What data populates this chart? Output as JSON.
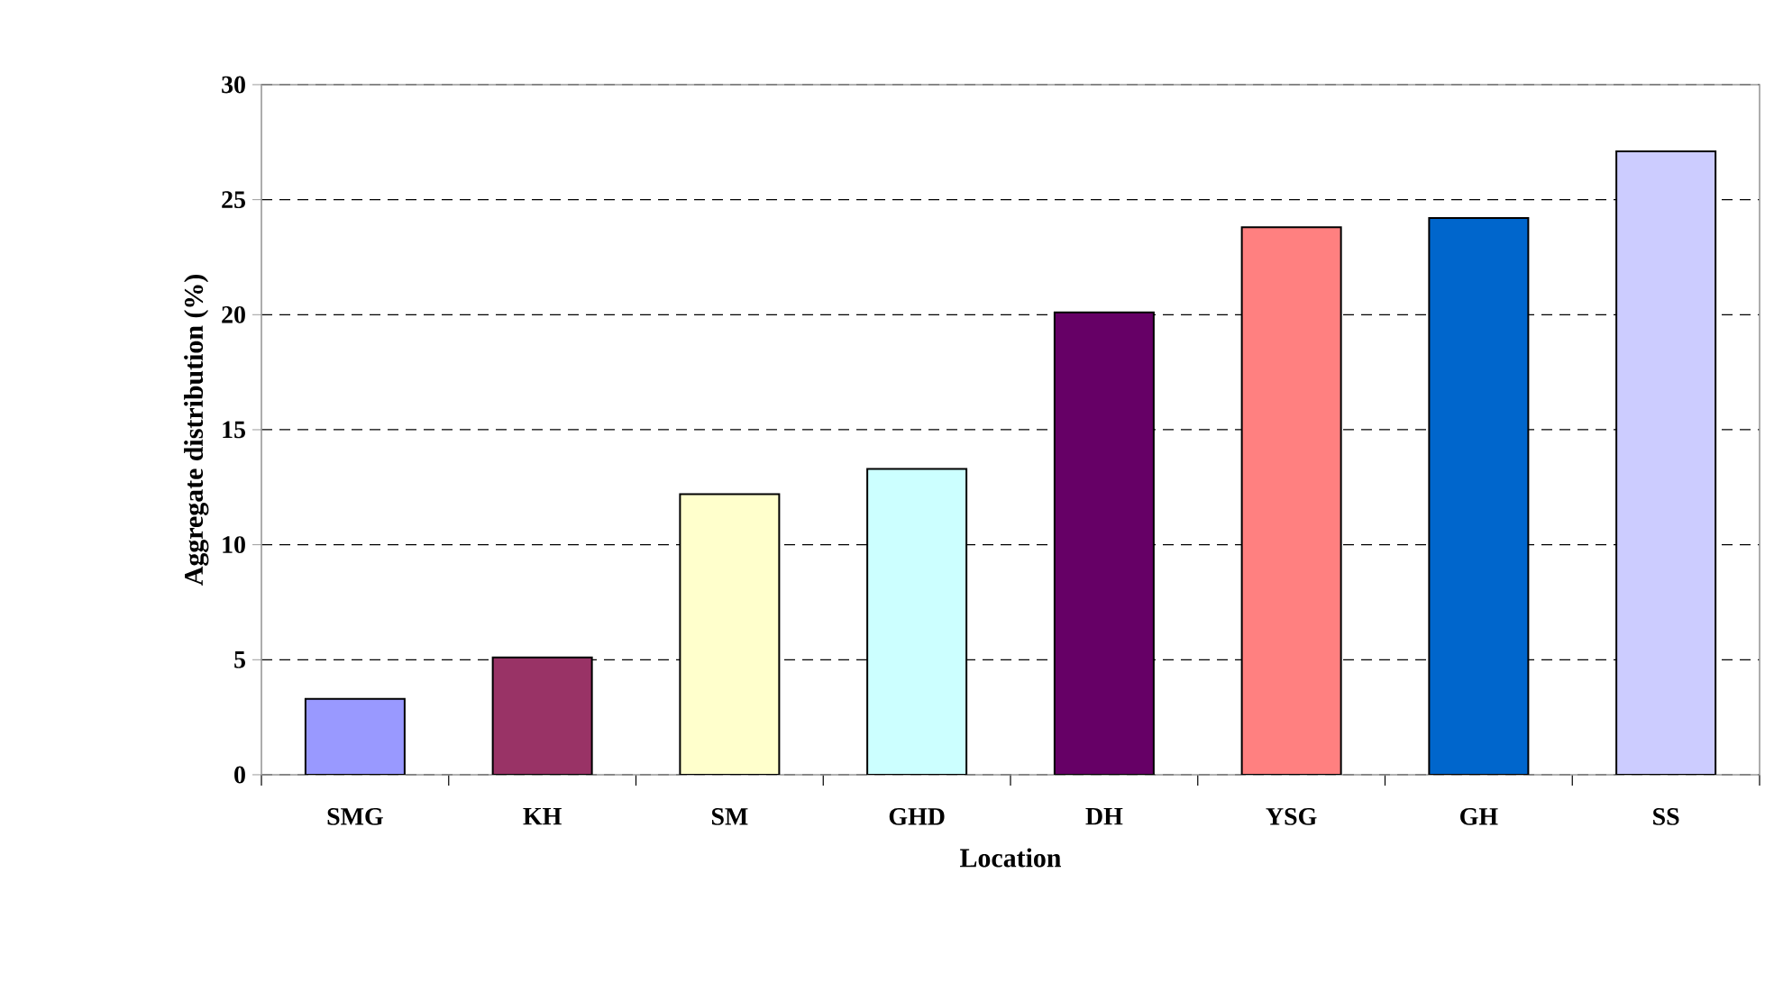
{
  "chart_data": {
    "type": "bar",
    "xlabel": "Location",
    "ylabel": "Aggregate distribution (%)",
    "categories": [
      "SMG",
      "KH",
      "SM",
      "GHD",
      "DH",
      "YSG",
      "GH",
      "SS"
    ],
    "values": [
      3.3,
      5.1,
      12.2,
      13.3,
      20.1,
      23.8,
      24.2,
      27.1
    ],
    "colors": [
      "#9999ff",
      "#993366",
      "#ffffcc",
      "#ccffff",
      "#660066",
      "#ff8080",
      "#0066cc",
      "#ccccff"
    ],
    "ylim": [
      0,
      30
    ],
    "yticks": [
      0,
      5,
      10,
      15,
      20,
      25,
      30
    ],
    "grid": "y"
  }
}
